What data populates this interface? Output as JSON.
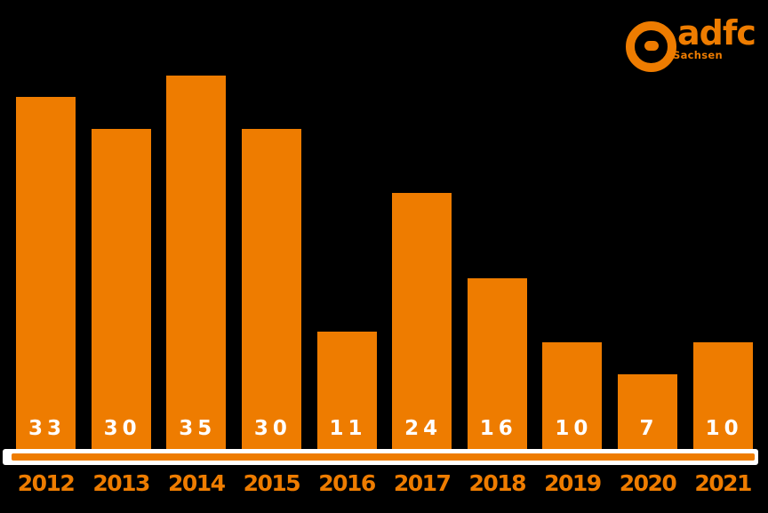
{
  "background_color": "#000000",
  "accent_color": "#EE7C00",
  "logo": {
    "brand": "adfc",
    "subtitle": "Sachsen",
    "icon": "adfc-ring-icon",
    "color": "#EE7C00"
  },
  "chart_data": {
    "type": "bar",
    "categories": [
      "2012",
      "2013",
      "2014",
      "2015",
      "2016",
      "2017",
      "2018",
      "2019",
      "2020",
      "2021"
    ],
    "values": [
      33,
      30,
      35,
      30,
      11,
      24,
      16,
      10,
      7,
      10
    ],
    "title": "",
    "xlabel": "",
    "ylabel": "",
    "ylim": [
      0,
      36
    ],
    "grid": false,
    "legend": "none",
    "bar_color": "#EE7C00",
    "value_label_color": "#FFFFFF",
    "category_label_color": "#EE7C00",
    "axis_band_color": "#FFFFFF",
    "axis_line_color": "#EE7C00",
    "value_labels_position": "inside-bottom"
  }
}
